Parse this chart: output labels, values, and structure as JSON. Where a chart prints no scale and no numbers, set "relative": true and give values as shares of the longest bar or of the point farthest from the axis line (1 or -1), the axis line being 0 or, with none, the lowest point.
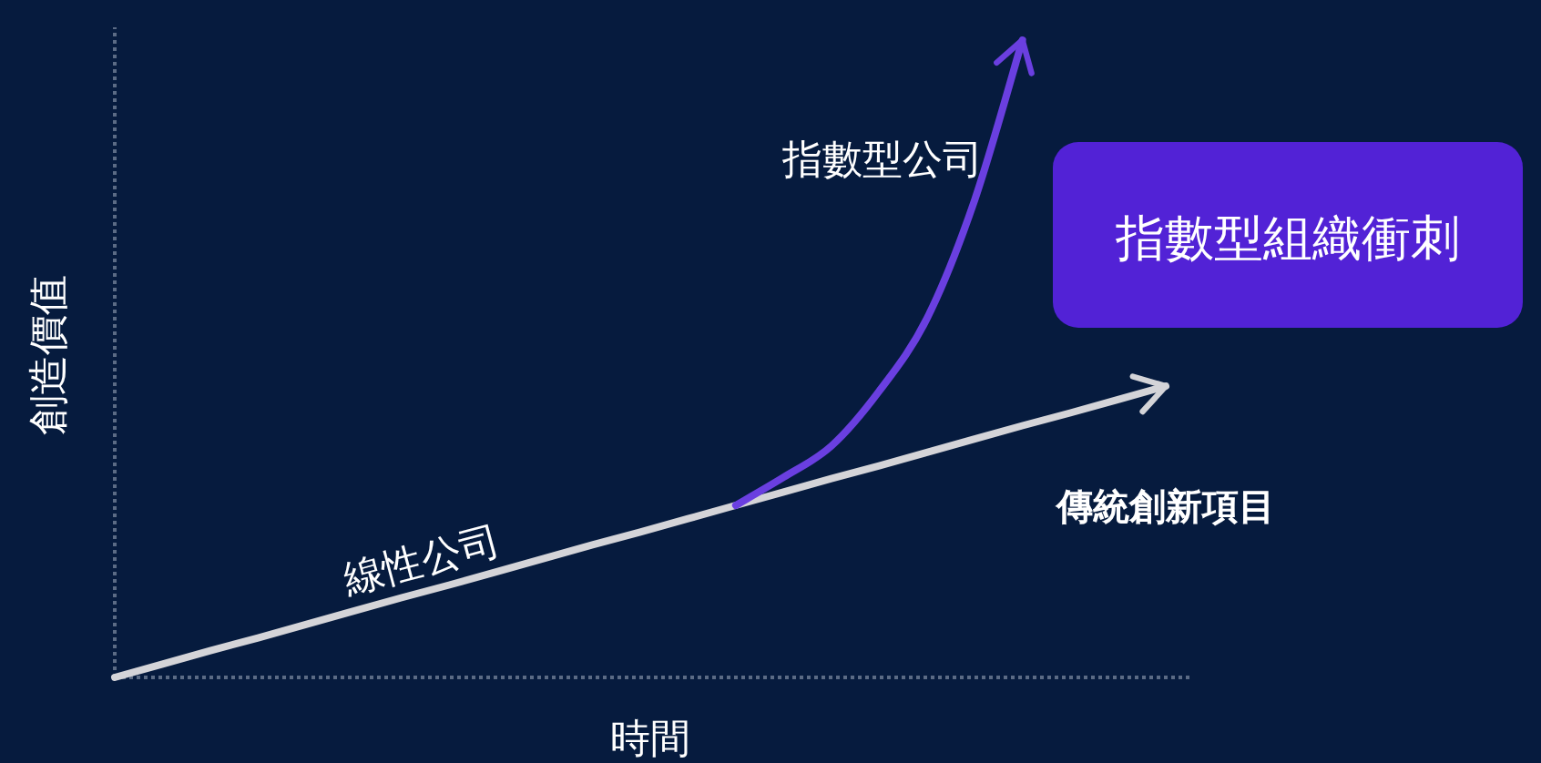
{
  "chart_data": {
    "type": "line",
    "relative": true,
    "xlabel": "時間",
    "ylabel": "創造價值",
    "categories": [
      null,
      null,
      null,
      null,
      null,
      null,
      null,
      null,
      null,
      null,
      null,
      null,
      null,
      null,
      null,
      null,
      null,
      null,
      null,
      null,
      null,
      null,
      null
    ],
    "series": [
      {
        "name": "線性公司",
        "color": "#d4d4d8",
        "values": [
          0,
          0.021,
          0.042,
          0.062,
          0.083,
          0.104,
          0.125,
          0.145,
          0.166,
          0.187,
          0.208,
          0.228,
          0.249,
          0.27,
          0.291,
          0.312,
          0.332,
          0.353,
          0.374,
          0.395,
          0.415,
          0.436,
          0.457
        ]
      },
      {
        "name": "指數型公司",
        "color": "#6a3fe0",
        "values": [
          null,
          null,
          null,
          null,
          null,
          null,
          null,
          null,
          null,
          null,
          null,
          null,
          null,
          0.27,
          0.314,
          0.363,
          0.449,
          0.563,
          0.749,
          1.0,
          null,
          null,
          null
        ]
      }
    ],
    "annotations": [
      "指數型組織衝刺",
      "傳統創新項目"
    ],
    "grid": false,
    "legend": false,
    "marker": "none",
    "line_style": "solid"
  }
}
